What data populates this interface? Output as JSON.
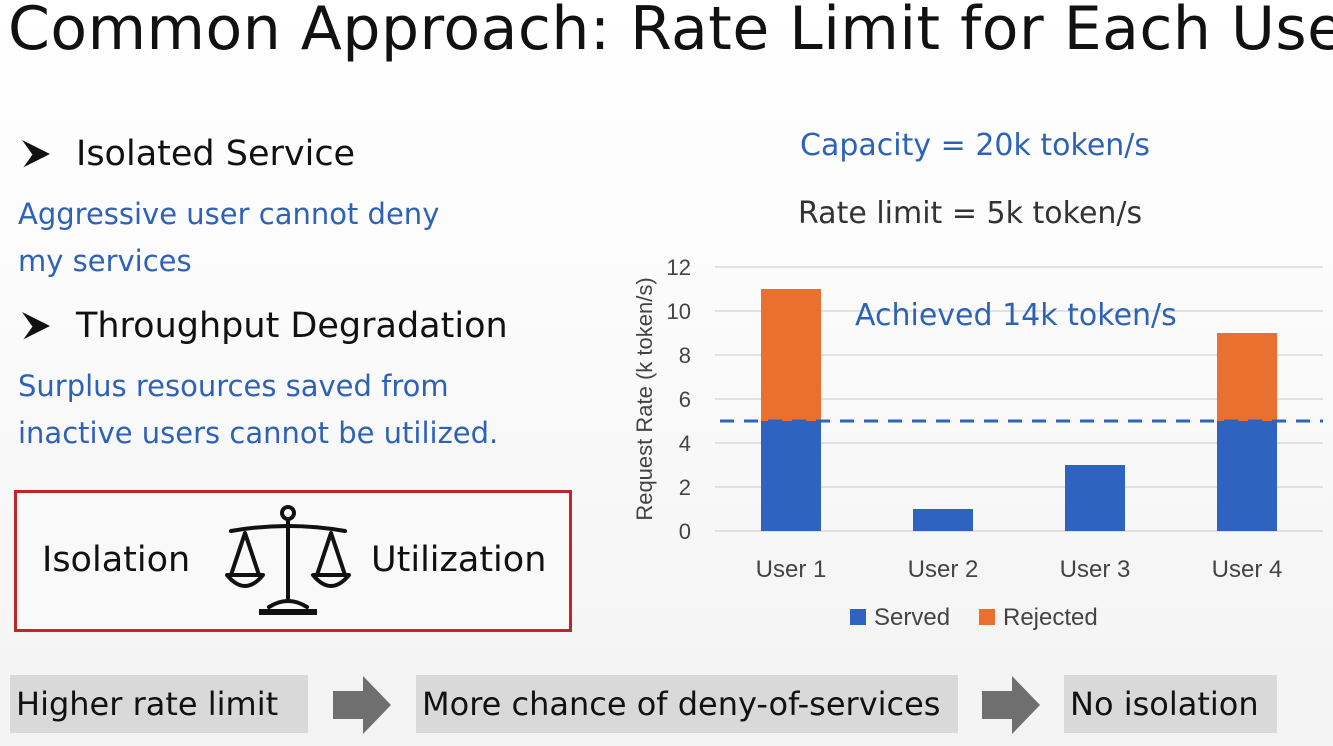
{
  "slide": {
    "title": "Common Approach: Rate Limit for Each User",
    "bullets": [
      {
        "heading": "Isolated Service",
        "lines": [
          "Aggressive user cannot deny",
          "my services"
        ]
      },
      {
        "heading": "Throughput Degradation",
        "lines": [
          "Surplus resources saved from",
          "inactive users cannot be utilized."
        ]
      }
    ],
    "balance": {
      "left_label": "Isolation",
      "right_label": "Utilization",
      "icon": "balance-scale-icon"
    },
    "capacity_text": "Capacity = 20k token/s",
    "rate_limit_text": "Rate limit = 5k token/s",
    "flow": {
      "steps": [
        "Higher rate limit",
        "More chance of deny-of-services",
        "No isolation"
      ],
      "arrow_icon": "right-arrow-icon"
    },
    "colors": {
      "accent_blue": "#2e62b7",
      "served": "#2f63c0",
      "rejected": "#ea7030",
      "box_border": "#c0252e",
      "flow_bg": "#d9d9d9"
    }
  },
  "chart_data": {
    "type": "bar",
    "stacked": true,
    "categories": [
      "User 1",
      "User 2",
      "User 3",
      "User 4"
    ],
    "series": [
      {
        "name": "Served",
        "values": [
          5,
          1,
          3,
          5
        ],
        "color": "#2f63c0"
      },
      {
        "name": "Rejected",
        "values": [
          6,
          0,
          0,
          4
        ],
        "color": "#ea7030"
      }
    ],
    "ylabel": "Request Rate (k token/s)",
    "xlabel": "",
    "ylim": [
      0,
      12
    ],
    "yticks": [
      0,
      2,
      4,
      6,
      8,
      10,
      12
    ],
    "reference_line": {
      "value": 5,
      "style": "dashed"
    },
    "annotation": "Achieved 14k token/s",
    "grid": true,
    "legend_position": "bottom"
  }
}
